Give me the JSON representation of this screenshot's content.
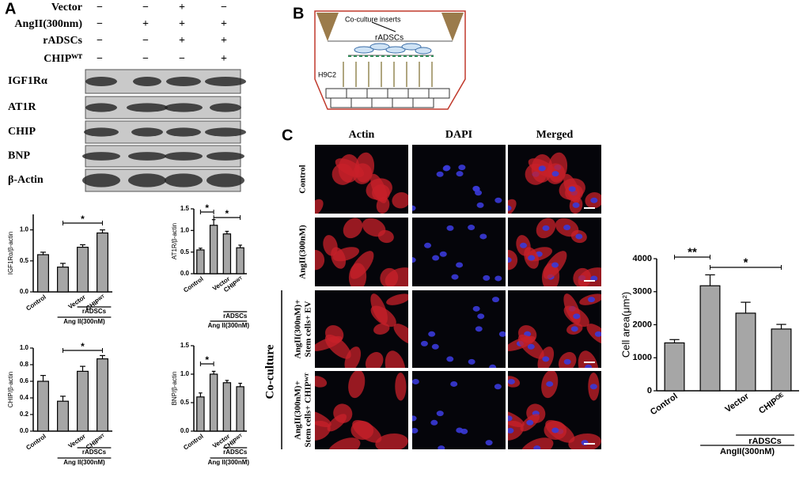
{
  "panel_labels": [
    "A",
    "B",
    "C"
  ],
  "treatment_table": {
    "rows": [
      {
        "label": "Vector",
        "signs": [
          "−",
          "−",
          "+",
          "−"
        ]
      },
      {
        "label": "AngII(300nm)",
        "signs": [
          "−",
          "+",
          "+",
          "+"
        ]
      },
      {
        "label": "rADSCs",
        "signs": [
          "−",
          "−",
          "+",
          "+"
        ]
      },
      {
        "label": "CHIPᵂᵀ",
        "signs": [
          "−",
          "−",
          "−",
          "+"
        ]
      }
    ]
  },
  "blot_labels": [
    "IGF1Rα",
    "AT1R",
    "CHIP",
    "BNP",
    "β-Actin"
  ],
  "diagram": {
    "insert_label": "Co-culture inserts",
    "upper_cells": "rADSCs",
    "lower_cells": "H9C2"
  },
  "microscopy": {
    "columns": [
      "Actin",
      "DAPI",
      "Merged"
    ],
    "rows": [
      [
        "Control"
      ],
      [
        "AngII(300nM)"
      ],
      [
        "AngII(300nM)+",
        "Stem cells+ EV"
      ],
      [
        "AngII(300nM)+",
        "Stem cells+ CHIPᵂᵀ"
      ]
    ],
    "group_label": "Co-culture"
  },
  "chart_data": [
    {
      "type": "bar",
      "title": "IGF1Rα/β-actin",
      "categories": [
        "Control",
        null,
        "Vector",
        "CHIPᵂᵀ"
      ],
      "values": [
        0.6,
        0.4,
        0.72,
        0.95
      ],
      "errors": [
        0.04,
        0.06,
        0.04,
        0.05
      ],
      "color": "#a6a6a6",
      "ylim": [
        0,
        1.25
      ],
      "yticks": [
        {
          "value": 0,
          "label": "0.0"
        },
        0.5,
        {
          "value": 1,
          "label": "1.0"
        }
      ],
      "significance": [
        "*"
      ],
      "group_labels": [
        "rADSCs",
        "Ang II(300nM)"
      ]
    },
    {
      "type": "bar",
      "title": "AT1R/β-actin",
      "categories": [
        "Control",
        null,
        "Vector",
        "CHIPᵂᵀ"
      ],
      "values": [
        0.55,
        1.12,
        0.92,
        0.6
      ],
      "errors": [
        0.04,
        0.13,
        0.06,
        0.06
      ],
      "color": "#a6a6a6",
      "ylim": [
        0,
        1.5
      ],
      "yticks": [
        {
          "value": 0,
          "label": "0.0"
        },
        0.5,
        {
          "value": 1,
          "label": "1.0"
        },
        1.5
      ],
      "significance": [
        "*",
        "*"
      ],
      "group_labels": [
        "rADSCs",
        "Ang II(300nM)"
      ]
    },
    {
      "type": "bar",
      "title": "CHIP/β-actin",
      "categories": [
        "Control",
        null,
        "Vector",
        "CHIPᵂᵀ"
      ],
      "values": [
        0.6,
        0.36,
        0.72,
        0.87
      ],
      "errors": [
        0.07,
        0.06,
        0.06,
        0.04
      ],
      "color": "#a6a6a6",
      "ylim": [
        0,
        1
      ],
      "yticks": [
        {
          "value": 0,
          "label": "0.0"
        },
        0.2,
        0.4,
        0.6,
        0.8,
        {
          "value": 1,
          "label": "1.0"
        }
      ],
      "significance": [
        "*"
      ],
      "group_labels": [
        "rADSCs",
        "Ang II(300nM)"
      ]
    },
    {
      "type": "bar",
      "title": "BNP/β-actin",
      "categories": [
        "Control",
        null,
        "Vector",
        "CHIPᵂᵀ"
      ],
      "values": [
        0.6,
        1.0,
        0.85,
        0.78
      ],
      "errors": [
        0.07,
        0.05,
        0.04,
        0.06
      ],
      "color": "#a6a6a6",
      "ylim": [
        0,
        1.5
      ],
      "yticks": [
        {
          "value": 0,
          "label": "0.0"
        },
        0.5,
        {
          "value": 1,
          "label": "1.0"
        },
        1.5
      ],
      "significance": [
        "*"
      ],
      "group_labels": [
        "rADSCs",
        "Ang II(300nM)"
      ]
    },
    {
      "type": "bar",
      "title": "Cell area(μm²)",
      "categories": [
        "Control",
        null,
        "Vector",
        "CHIPᴼᴱ"
      ],
      "values": [
        1450,
        3180,
        2350,
        1870
      ],
      "errors": [
        100,
        330,
        330,
        140
      ],
      "color": "#a6a6a6",
      "ylim": [
        0,
        4000
      ],
      "yticks": [
        0,
        1000,
        2000,
        3000,
        4000
      ],
      "significance": [
        "**",
        "*"
      ],
      "group_labels": [
        "rADSCs",
        "AngII(300nM)"
      ]
    }
  ]
}
